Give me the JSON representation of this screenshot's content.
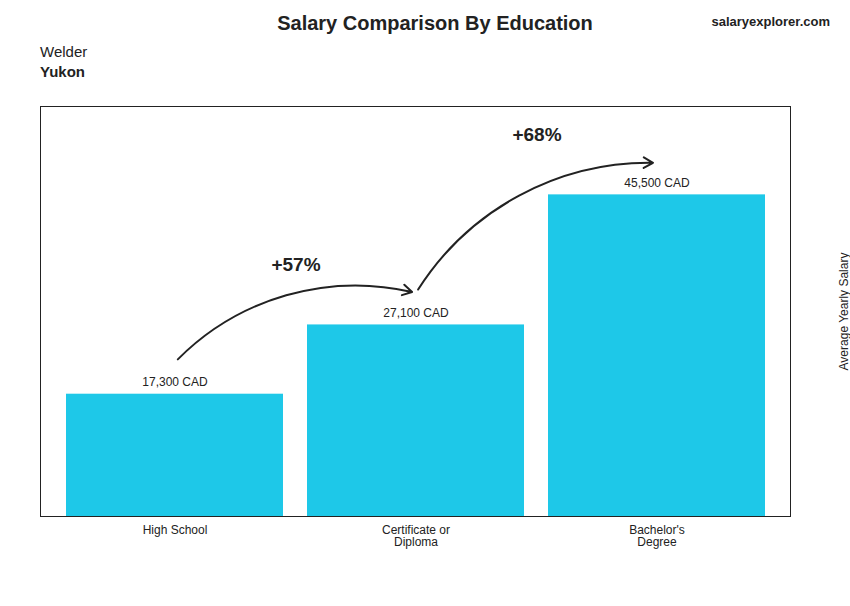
{
  "chart_data": {
    "type": "bar",
    "title": "Salary Comparison By Education",
    "subtitle": [
      "Welder",
      "Yukon"
    ],
    "source": [
      "salary",
      "explorer",
      ".com"
    ],
    "ylabel": "Average Yearly Salary",
    "categories": [
      "High School",
      "Certificate or\nDiploma",
      "Bachelor's\nDegree"
    ],
    "values": [
      17300,
      27100,
      45500
    ],
    "value_labels": [
      "17,300 CAD",
      "27,100 CAD",
      "45,500 CAD"
    ],
    "data_labels": true,
    "color": "#1EC8E8",
    "ylim": [
      0,
      58000
    ],
    "tick_labels": "x",
    "annotations": [
      {
        "text": "+57%",
        "from": "High School",
        "to": "Certificate or\nDiploma"
      },
      {
        "text": "+68%",
        "from": "Certificate or\nDiploma",
        "to": "Bachelor's\nDegree"
      }
    ]
  }
}
